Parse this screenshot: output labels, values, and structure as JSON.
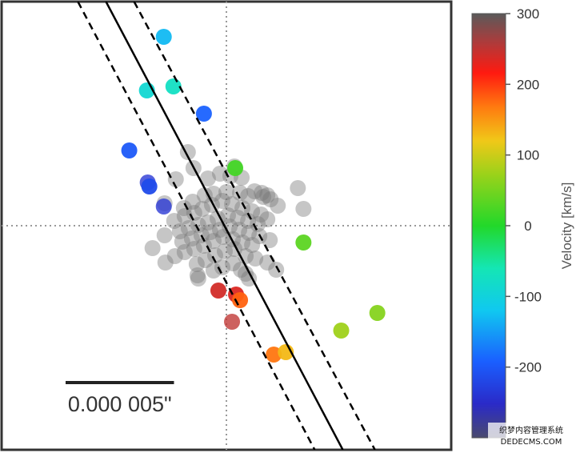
{
  "chart_data": {
    "type": "scatter",
    "title": "",
    "xlabel": "",
    "ylabel": "",
    "xlim": [
      -2.8,
      2.8
    ],
    "ylim": [
      -2.8,
      2.8
    ],
    "grid": false,
    "reference_lines": {
      "x": 0,
      "y": 0,
      "style": "dotted"
    },
    "axis_lines": {
      "solid": [
        [
          -1.5,
          2.8
        ],
        [
          1.45,
          -2.8
        ]
      ],
      "dashed": [
        [
          [
            -1.85,
            2.8
          ],
          [
            1.1,
            -2.8
          ]
        ],
        [
          [
            -1.15,
            2.8
          ],
          [
            1.85,
            -2.8
          ]
        ]
      ]
    },
    "scale_bar": {
      "label": "0.000 005\"",
      "length": 1.35
    },
    "colorbar": {
      "title": "Velocity [km/s]",
      "ticks": [
        "300",
        "200",
        "100",
        "0",
        "-100",
        "-200"
      ],
      "tick_values": [
        300,
        200,
        100,
        0,
        -100,
        -200
      ],
      "range": [
        -300,
        300
      ],
      "colormap": "jet"
    },
    "colored_points": [
      {
        "x": -0.78,
        "y": 2.36,
        "v": -130
      },
      {
        "x": -0.99,
        "y": 1.69,
        "v": -90
      },
      {
        "x": -0.66,
        "y": 1.74,
        "v": -75
      },
      {
        "x": -0.28,
        "y": 1.4,
        "v": -190
      },
      {
        "x": -1.21,
        "y": 0.94,
        "v": -200
      },
      {
        "x": -0.98,
        "y": 0.54,
        "v": -240
      },
      {
        "x": -0.96,
        "y": 0.49,
        "v": -215
      },
      {
        "x": -0.78,
        "y": 0.24,
        "v": -240
      },
      {
        "x": 0.11,
        "y": 0.72,
        "v": 20
      },
      {
        "x": 0.96,
        "y": -0.21,
        "v": 35
      },
      {
        "x": -0.1,
        "y": -0.81,
        "v": 240
      },
      {
        "x": 0.12,
        "y": -0.86,
        "v": 235
      },
      {
        "x": 0.17,
        "y": -0.93,
        "v": 180
      },
      {
        "x": 0.07,
        "y": -1.2,
        "v": 250
      },
      {
        "x": 0.59,
        "y": -1.61,
        "v": 170
      },
      {
        "x": 0.74,
        "y": -1.58,
        "v": 130
      },
      {
        "x": 1.43,
        "y": -1.31,
        "v": 75
      },
      {
        "x": 1.88,
        "y": -1.09,
        "v": 60
      }
    ],
    "grey_points": [
      [
        -0.48,
        0.92
      ],
      [
        -0.41,
        0.72
      ],
      [
        -0.63,
        0.58
      ],
      [
        -0.23,
        0.59
      ],
      [
        -0.08,
        0.65
      ],
      [
        0.05,
        0.62
      ],
      [
        0.1,
        0.74
      ],
      [
        0.19,
        0.6
      ],
      [
        0.35,
        0.43
      ],
      [
        0.44,
        0.41
      ],
      [
        0.51,
        0.38
      ],
      [
        0.55,
        0.33
      ],
      [
        0.46,
        0.36
      ],
      [
        0.27,
        0.37
      ],
      [
        0.17,
        0.41
      ],
      [
        0.0,
        0.42
      ],
      [
        -0.16,
        0.4
      ],
      [
        -0.27,
        0.38
      ],
      [
        -0.42,
        0.3
      ],
      [
        -0.53,
        0.22
      ],
      [
        0.64,
        0.25
      ],
      [
        0.89,
        0.47
      ],
      [
        0.96,
        0.21
      ],
      [
        -0.77,
        0.28
      ],
      [
        -0.65,
        0.06
      ],
      [
        -0.52,
        0.12
      ],
      [
        -0.4,
        0.16
      ],
      [
        -0.3,
        0.21
      ],
      [
        -0.18,
        0.26
      ],
      [
        -0.05,
        0.31
      ],
      [
        0.07,
        0.27
      ],
      [
        0.2,
        0.22
      ],
      [
        0.32,
        0.18
      ],
      [
        0.43,
        0.14
      ],
      [
        0.51,
        0.08
      ],
      [
        0.39,
        0.02
      ],
      [
        0.27,
        0.06
      ],
      [
        0.14,
        0.1
      ],
      [
        0.02,
        0.13
      ],
      [
        -0.11,
        0.09
      ],
      [
        -0.23,
        0.04
      ],
      [
        -0.35,
        0.01
      ],
      [
        -0.47,
        -0.03
      ],
      [
        -0.58,
        -0.07
      ],
      [
        -0.77,
        -0.12
      ],
      [
        -0.55,
        -0.2
      ],
      [
        -0.43,
        -0.16
      ],
      [
        -0.31,
        -0.12
      ],
      [
        -0.2,
        -0.08
      ],
      [
        -0.08,
        -0.05
      ],
      [
        0.04,
        -0.01
      ],
      [
        0.16,
        -0.05
      ],
      [
        0.28,
        -0.09
      ],
      [
        0.41,
        -0.13
      ],
      [
        0.54,
        -0.18
      ],
      [
        0.32,
        -0.24
      ],
      [
        0.2,
        -0.21
      ],
      [
        0.08,
        -0.17
      ],
      [
        -0.04,
        -0.14
      ],
      [
        -0.16,
        -0.19
      ],
      [
        -0.28,
        -0.25
      ],
      [
        -0.4,
        -0.29
      ],
      [
        -0.52,
        -0.33
      ],
      [
        -0.64,
        -0.38
      ],
      [
        -0.92,
        -0.28
      ],
      [
        -0.76,
        -0.46
      ],
      [
        -0.37,
        -0.48
      ],
      [
        -0.26,
        -0.43
      ],
      [
        -0.14,
        -0.37
      ],
      [
        -0.02,
        -0.32
      ],
      [
        0.1,
        -0.29
      ],
      [
        0.24,
        -0.38
      ],
      [
        0.36,
        -0.41
      ],
      [
        0.51,
        -0.46
      ],
      [
        0.62,
        -0.55
      ],
      [
        -0.36,
        -0.62
      ],
      [
        -0.35,
        -0.66
      ],
      [
        -0.16,
        -0.56
      ],
      [
        -0.05,
        -0.52
      ],
      [
        0.08,
        -0.47
      ],
      [
        0.18,
        -0.55
      ],
      [
        0.24,
        -0.6
      ],
      [
        0.28,
        -0.66
      ]
    ]
  }
}
